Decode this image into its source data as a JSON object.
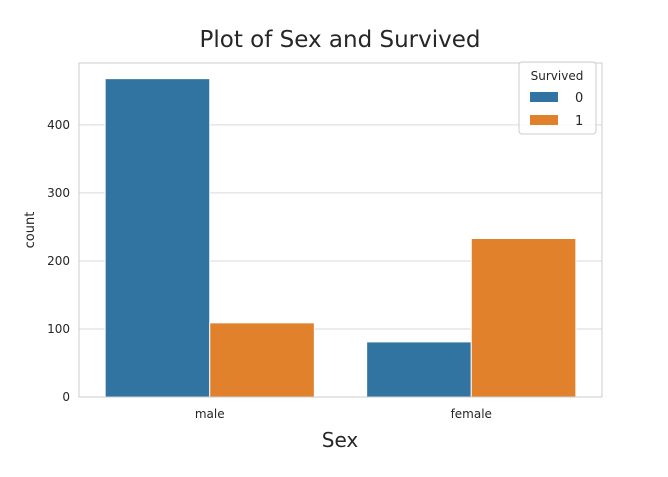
{
  "chart_data": {
    "type": "bar",
    "title": "Plot of Sex and Survived",
    "xlabel": "Sex",
    "ylabel": "count",
    "categories": [
      "male",
      "female"
    ],
    "series": [
      {
        "name": "0",
        "values": [
          468,
          81
        ],
        "color": "#3274a1"
      },
      {
        "name": "1",
        "values": [
          109,
          233
        ],
        "color": "#e1812c"
      }
    ],
    "ylim": [
      0,
      491
    ],
    "yticks": [
      0,
      100,
      200,
      300,
      400
    ],
    "grid": true,
    "legend": {
      "title": "Survived",
      "placement": "top-right"
    }
  }
}
